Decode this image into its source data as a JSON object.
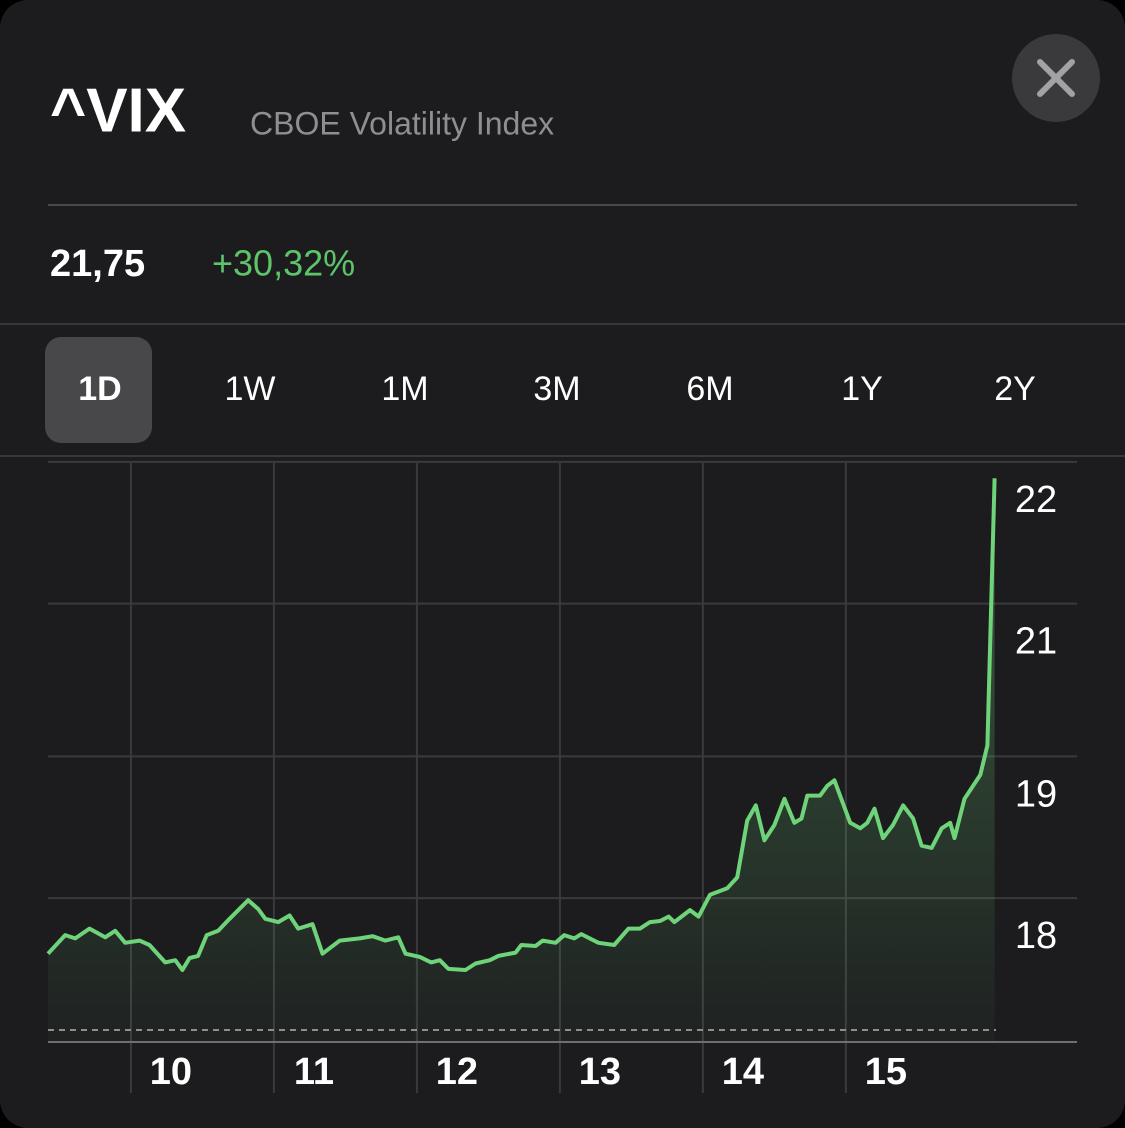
{
  "header": {
    "symbol": "^VIX",
    "name": "CBOE Volatility Index"
  },
  "quote": {
    "price": "21,75",
    "change": "+30,32%"
  },
  "tabs": [
    "1D",
    "1W",
    "1M",
    "3M",
    "6M",
    "1Y",
    "2Y"
  ],
  "active_tab": 0,
  "chart_data": {
    "type": "area",
    "color": "#6fd37a",
    "x": [
      9.42,
      9.54,
      9.61,
      9.71,
      9.82,
      9.89,
      9.96,
      10.06,
      10.13,
      10.24,
      10.31,
      10.36,
      10.41,
      10.47,
      10.53,
      10.61,
      10.69,
      10.82,
      10.89,
      10.94,
      11.03,
      11.11,
      11.17,
      11.27,
      11.34,
      11.46,
      11.6,
      11.69,
      11.78,
      11.87,
      11.92,
      12.02,
      12.1,
      12.16,
      12.22,
      12.34,
      12.41,
      12.51,
      12.57,
      12.69,
      12.73,
      12.83,
      12.88,
      12.97,
      13.03,
      13.1,
      13.15,
      13.27,
      13.38,
      13.48,
      13.56,
      13.63,
      13.7,
      13.76,
      13.8,
      13.91,
      13.97,
      14.05,
      14.17,
      14.24,
      14.31,
      14.37,
      14.43,
      14.5,
      14.57,
      14.64,
      14.69,
      14.73,
      14.82,
      14.87,
      14.92,
      15.03,
      15.1,
      15.15,
      15.2,
      15.26,
      15.33,
      15.4,
      15.47,
      15.53,
      15.6,
      15.67,
      15.73,
      15.76,
      15.83,
      15.94,
      15.99,
      16.04
    ],
    "values": [
      17.39,
      17.56,
      17.53,
      17.62,
      17.54,
      17.6,
      17.49,
      17.51,
      17.47,
      17.31,
      17.33,
      17.24,
      17.35,
      17.37,
      17.56,
      17.6,
      17.71,
      17.88,
      17.8,
      17.71,
      17.68,
      17.74,
      17.62,
      17.66,
      17.39,
      17.51,
      17.53,
      17.55,
      17.51,
      17.54,
      17.39,
      17.36,
      17.31,
      17.33,
      17.25,
      17.24,
      17.3,
      17.33,
      17.37,
      17.4,
      17.47,
      17.46,
      17.51,
      17.49,
      17.56,
      17.53,
      17.57,
      17.49,
      17.47,
      17.62,
      17.62,
      17.68,
      17.69,
      17.73,
      17.68,
      17.79,
      17.73,
      17.93,
      17.99,
      18.09,
      18.61,
      18.75,
      18.43,
      18.57,
      18.81,
      18.59,
      18.63,
      18.84,
      18.84,
      18.93,
      18.98,
      18.59,
      18.54,
      18.59,
      18.72,
      18.45,
      18.57,
      18.75,
      18.63,
      18.38,
      18.36,
      18.54,
      18.59,
      18.45,
      18.81,
      19.03,
      19.3,
      21.75
    ],
    "baseline": 16.69,
    "xlim": [
      9.42,
      16.05
    ],
    "xticks": [
      10,
      11,
      12,
      13,
      14,
      15
    ],
    "ylim": [
      16.58,
      21.89
    ],
    "yticks": [
      {
        "value": 21.9,
        "label": "22"
      },
      {
        "value": 20.6,
        "label": "21"
      },
      {
        "value": 19.2,
        "label": "19"
      },
      {
        "value": 17.9,
        "label": "18"
      }
    ],
    "grid": true
  }
}
